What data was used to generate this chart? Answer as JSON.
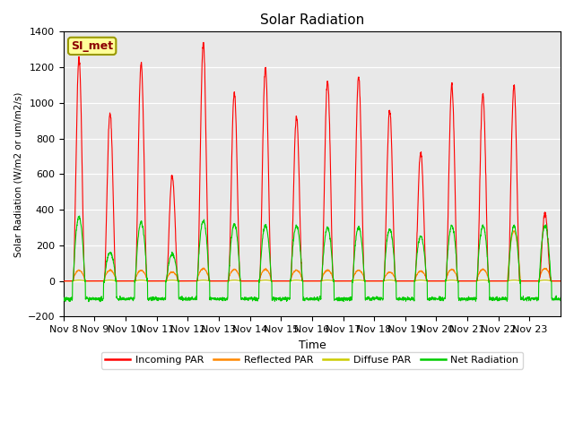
{
  "title": "Solar Radiation",
  "ylabel": "Solar Radiation (W/m2 or um/m2/s)",
  "xlabel": "Time",
  "ylim": [
    -200,
    1400
  ],
  "background_color": "#e8e8e8",
  "tick_labels": [
    "Nov 8",
    "Nov 9",
    "Nov 10",
    "Nov 11",
    "Nov 12",
    "Nov 13",
    "Nov 14",
    "Nov 15",
    "Nov 16",
    "Nov 17",
    "Nov 18",
    "Nov 19",
    "Nov 20",
    "Nov 21",
    "Nov 22",
    "Nov 23"
  ],
  "station_label": "SI_met",
  "legend_entries": [
    "Incoming PAR",
    "Reflected PAR",
    "Diffuse PAR",
    "Net Radiation"
  ],
  "legend_colors": [
    "#ff0000",
    "#ff8800",
    "#cccc00",
    "#00cc00"
  ],
  "incoming_peaks": [
    1250,
    940,
    1220,
    590,
    1340,
    1060,
    1200,
    920,
    1120,
    1150,
    960,
    720,
    1100,
    1050,
    1100,
    380
  ],
  "reflected_peaks": [
    60,
    60,
    60,
    50,
    70,
    65,
    65,
    60,
    60,
    60,
    50,
    55,
    65,
    65,
    280,
    70
  ],
  "net_peaks": [
    360,
    160,
    330,
    150,
    340,
    320,
    310,
    310,
    300,
    300,
    290,
    250,
    310,
    310,
    310,
    310
  ],
  "night_net": -100,
  "num_days": 16,
  "yticks": [
    -200,
    0,
    200,
    400,
    600,
    800,
    1000,
    1200,
    1400
  ]
}
